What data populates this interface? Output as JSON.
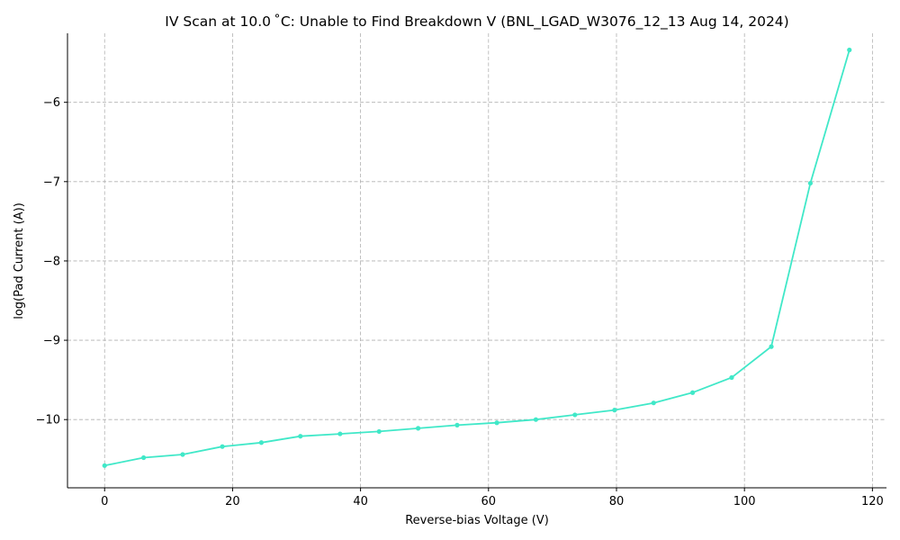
{
  "chart_data": {
    "type": "line",
    "title": "IV Scan at 10.0$^\\circ$C: Unable to Find Breakdown V (BNL_LGAD_W3076_12_13 Aug 14, 2024)",
    "title_display": "IV Scan at 10.0 ˚C: Unable to Find Breakdown V (BNL_LGAD_W3076_12_13 Aug 14, 2024)",
    "xlabel": "Reverse-bias Voltage (V)",
    "ylabel": "log(Pad Current (A))",
    "xlim": [
      -5.8,
      122.2
    ],
    "ylim": [
      -10.86,
      -5.13
    ],
    "xticks": [
      0,
      20,
      40,
      60,
      80,
      100,
      120
    ],
    "xtick_labels": [
      "0",
      "20",
      "40",
      "60",
      "80",
      "100",
      "120"
    ],
    "yticks": [
      -10,
      -9,
      -8,
      -7,
      -6
    ],
    "ytick_labels": [
      "−10",
      "−9",
      "−8",
      "−7",
      "−6"
    ],
    "grid": true,
    "color": "#40e8c8",
    "series": [
      {
        "x": [
          0,
          6.1,
          12.2,
          18.4,
          24.5,
          30.6,
          36.8,
          42.9,
          49.0,
          55.1,
          61.3,
          67.4,
          73.5,
          79.7,
          85.8,
          91.9,
          98.0,
          104.2,
          110.3,
          116.4
        ],
        "y": [
          -10.58,
          -10.48,
          -10.44,
          -10.34,
          -10.29,
          -10.21,
          -10.18,
          -10.15,
          -10.11,
          -10.07,
          -10.04,
          -10.0,
          -9.94,
          -9.88,
          -9.79,
          -9.66,
          -9.47,
          -9.08,
          -7.02,
          -5.34
        ]
      }
    ]
  }
}
